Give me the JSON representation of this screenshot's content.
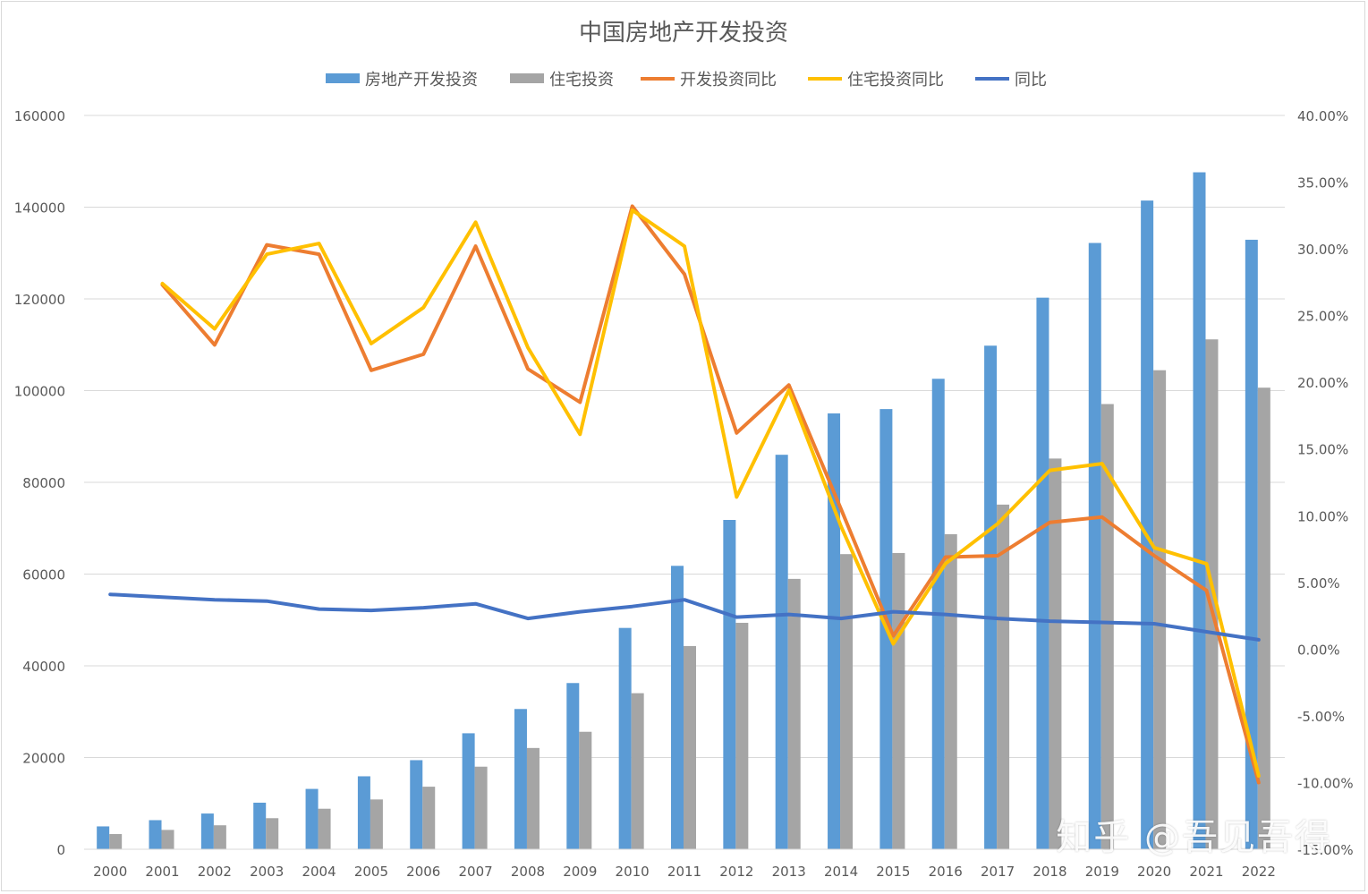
{
  "chart_data": {
    "type": "bar",
    "title": "中国房地产开发投资",
    "categories": [
      "2000",
      "2001",
      "2002",
      "2003",
      "2004",
      "2005",
      "2006",
      "2007",
      "2008",
      "2009",
      "2010",
      "2011",
      "2012",
      "2013",
      "2014",
      "2015",
      "2016",
      "2017",
      "2018",
      "2019",
      "2020",
      "2021",
      "2022"
    ],
    "series": [
      {
        "name": "房地产开发投资",
        "kind": "bar",
        "axis": "left",
        "color": "#5b9bd5",
        "values": [
          4984,
          6344,
          7791,
          10154,
          13158,
          15909,
          19423,
          25289,
          30580,
          36242,
          48259,
          61797,
          71804,
          86013,
          95036,
          95979,
          102581,
          109799,
          120264,
          132194,
          141443,
          147602,
          132895
        ]
      },
      {
        "name": "住宅投资",
        "kind": "bar",
        "axis": "left",
        "color": "#a5a5a5",
        "values": [
          3312,
          4217,
          5228,
          6777,
          8837,
          10861,
          13638,
          18005,
          22081,
          25614,
          34026,
          44308,
          49374,
          58951,
          64352,
          64595,
          68704,
          75148,
          85192,
          97071,
          104446,
          111173,
          100646
        ]
      },
      {
        "name": "开发投资同比",
        "kind": "line",
        "axis": "right",
        "color": "#ed7d31",
        "values": [
          null,
          27.3,
          22.8,
          30.3,
          29.6,
          20.9,
          22.1,
          30.2,
          21.0,
          18.5,
          33.2,
          28.1,
          16.2,
          19.8,
          10.5,
          1.0,
          6.9,
          7.0,
          9.5,
          9.9,
          7.0,
          4.4,
          -10.0
        ]
      },
      {
        "name": "住宅投资同比",
        "kind": "line",
        "axis": "right",
        "color": "#ffc000",
        "values": [
          null,
          27.4,
          24.0,
          29.6,
          30.4,
          22.9,
          25.6,
          32.0,
          22.6,
          16.1,
          32.9,
          30.2,
          11.4,
          19.4,
          9.2,
          0.4,
          6.4,
          9.4,
          13.4,
          13.9,
          7.6,
          6.4,
          -9.5
        ]
      },
      {
        "name": "同比",
        "kind": "line",
        "axis": "right",
        "color": "#4472c4",
        "values": [
          4.1,
          3.9,
          3.7,
          3.6,
          3.0,
          2.9,
          3.1,
          3.4,
          2.3,
          2.8,
          3.2,
          3.7,
          2.4,
          2.6,
          2.3,
          2.8,
          2.6,
          2.3,
          2.1,
          2.0,
          1.9,
          1.3,
          0.7
        ]
      }
    ],
    "y_left": {
      "min": 0,
      "max": 160000,
      "ticks": [
        "0",
        "20000",
        "40000",
        "60000",
        "80000",
        "100000",
        "120000",
        "140000",
        "160000"
      ]
    },
    "y_right": {
      "min": -15,
      "max": 40,
      "ticks": [
        "-15.00%",
        "-10.00%",
        "-5.00%",
        "0.00%",
        "5.00%",
        "10.00%",
        "15.00%",
        "20.00%",
        "25.00%",
        "30.00%",
        "35.00%",
        "40.00%"
      ]
    },
    "grid": true,
    "legend_position": "top"
  },
  "watermark": "知乎 @吾见吾得"
}
